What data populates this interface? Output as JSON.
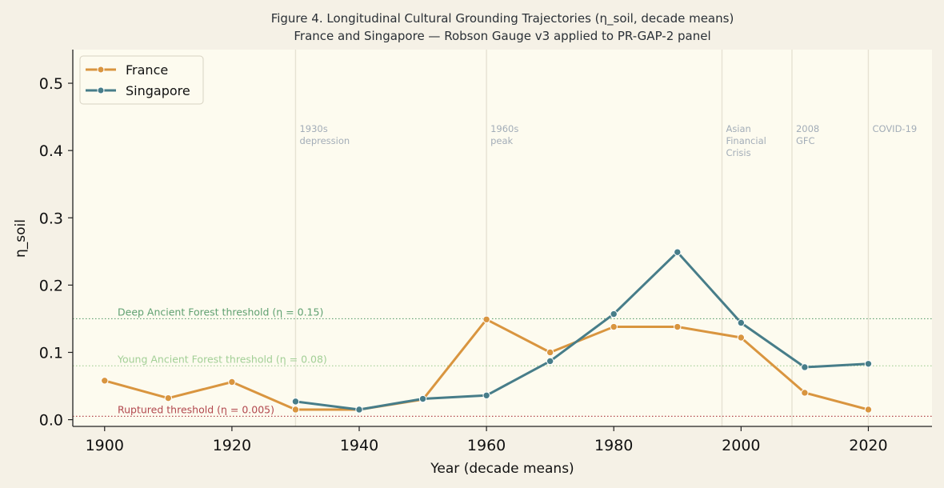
{
  "chart_data": {
    "type": "line",
    "title": "Figure 4. Longitudinal Cultural Grounding Trajectories (η_soil, decade means)",
    "subtitle": "France and Singapore — Robson Gauge v3 applied to PR-GAP-2 panel",
    "xlabel": "Year (decade means)",
    "ylabel": "η_soil",
    "xlim": [
      1895,
      2030
    ],
    "ylim": [
      -0.01,
      0.55
    ],
    "xticks": [
      1900,
      1920,
      1940,
      1960,
      1980,
      2000,
      2020
    ],
    "yticks": [
      0.0,
      0.1,
      0.2,
      0.3,
      0.4,
      0.5
    ],
    "legend_position": "top-left",
    "series": [
      {
        "name": "France",
        "color": "#d9953f",
        "x": [
          1900,
          1910,
          1920,
          1930,
          1940,
          1950,
          1960,
          1970,
          1980,
          1990,
          2000,
          2010,
          2020
        ],
        "y": [
          0.058,
          0.032,
          0.056,
          0.015,
          0.015,
          0.03,
          0.149,
          0.1,
          0.138,
          0.138,
          0.122,
          0.04,
          0.015
        ]
      },
      {
        "name": "Singapore",
        "color": "#477d89",
        "x": [
          1930,
          1940,
          1950,
          1960,
          1970,
          1980,
          1990,
          2000,
          2010,
          2020
        ],
        "y": [
          0.027,
          0.015,
          0.031,
          0.036,
          0.087,
          0.157,
          0.249,
          0.144,
          0.078,
          0.083
        ]
      }
    ],
    "thresholds": [
      {
        "label": "Deep Ancient Forest threshold (η = 0.15)",
        "value": 0.15,
        "color": "#5fa070"
      },
      {
        "label": "Young Ancient Forest threshold (η = 0.08)",
        "value": 0.08,
        "color": "#a2cf96"
      },
      {
        "label": "Ruptured threshold (η = 0.005)",
        "value": 0.005,
        "color": "#b2484e"
      }
    ],
    "events": [
      {
        "x": 1930,
        "lines": [
          "1930s",
          "depression"
        ]
      },
      {
        "x": 1960,
        "lines": [
          "1960s",
          "peak"
        ]
      },
      {
        "x": 1997,
        "lines": [
          "Asian",
          "Financial",
          "Crisis"
        ]
      },
      {
        "x": 2008,
        "lines": [
          "2008",
          "GFC"
        ]
      },
      {
        "x": 2020,
        "lines": [
          "COVID-19"
        ]
      }
    ]
  }
}
